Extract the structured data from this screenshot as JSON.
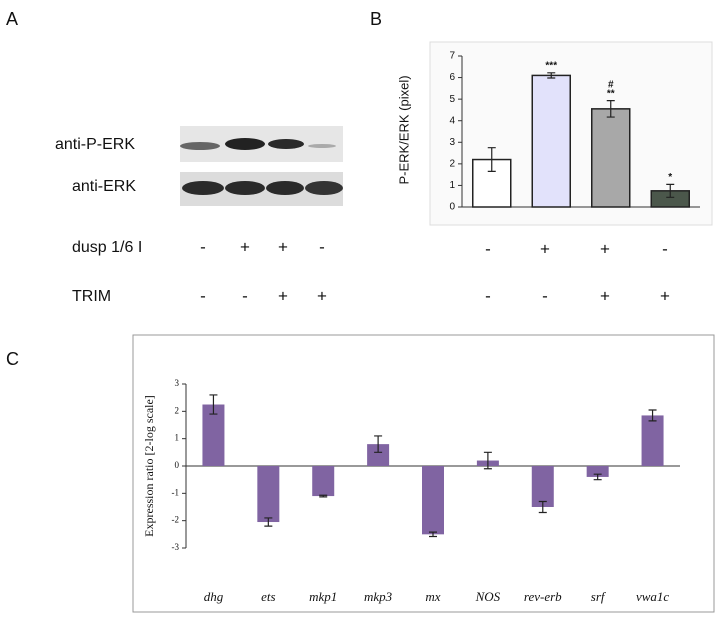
{
  "panels": [
    "A",
    "B",
    "C"
  ],
  "blot": {
    "bands": [
      "anti-P-ERK",
      "anti-ERK"
    ],
    "conditions": [
      {
        "label": "dusp 1/6 I",
        "signs": [
          "-",
          "+",
          "+",
          "-"
        ]
      },
      {
        "label": "TRIM",
        "signs": [
          "-",
          "-",
          "+",
          "+"
        ]
      }
    ]
  },
  "chart_data": [
    {
      "type": "bar",
      "y_label": "P-ERK/ERK (pixel)",
      "categories": [
        null,
        null,
        null,
        null
      ],
      "values": [
        2.2,
        6.1,
        4.55,
        0.75
      ],
      "errors": [
        0.55,
        0.12,
        0.38,
        0.3
      ],
      "colors": [
        "#ffffff",
        "#e2e2fb",
        "#a8a8a8",
        "#4b574b"
      ],
      "annotations": [
        null,
        [
          "***"
        ],
        [
          "#",
          "**"
        ],
        [
          "*"
        ]
      ],
      "condition_signs": [
        [
          "-",
          "+",
          "+",
          "-"
        ],
        [
          "-",
          "-",
          "+",
          "+"
        ]
      ],
      "ylim": [
        0,
        7
      ],
      "yticks": [
        0,
        1,
        2,
        3,
        4,
        5,
        6,
        7
      ],
      "grid": false
    },
    {
      "type": "bar",
      "y_label": "Expression ratio [2-log scale]",
      "categories": [
        "dhg",
        "ets",
        "mkp1",
        "mkp3",
        "mx",
        "NOS",
        "rev-erb",
        "srf",
        "vwa1c"
      ],
      "values": [
        2.25,
        -2.05,
        -1.1,
        0.8,
        -2.5,
        0.2,
        -1.5,
        -0.4,
        1.85
      ],
      "errors": [
        0.35,
        0.15,
        0.03,
        0.3,
        0.08,
        0.3,
        0.2,
        0.1,
        0.2
      ],
      "color": "#8064a2",
      "ylim": [
        -3,
        3
      ],
      "yticks": [
        -3,
        -2,
        -1,
        0,
        1,
        2,
        3
      ],
      "grid": false
    }
  ]
}
